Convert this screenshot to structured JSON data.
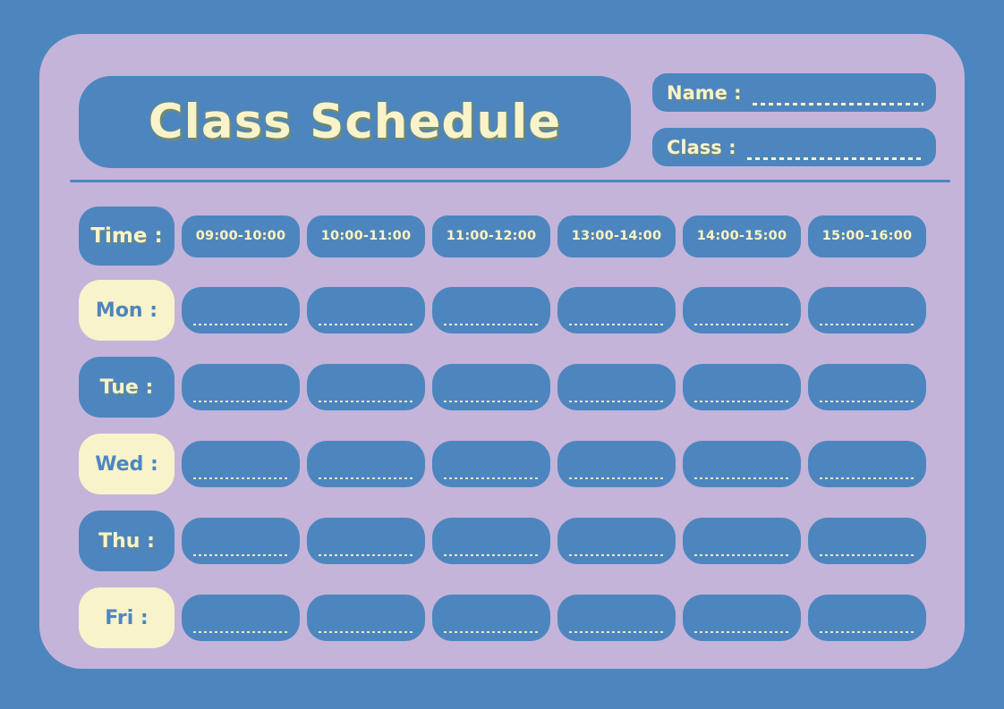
{
  "title": "Class Schedule",
  "fields": {
    "name_label": "Name :",
    "class_label": "Class :"
  },
  "schedule": {
    "time_label": "Time :",
    "time_slots": [
      "09:00-10:00",
      "10:00-11:00",
      "11:00-12:00",
      "13:00-14:00",
      "14:00-15:00",
      "15:00-16:00"
    ],
    "days": [
      "Mon :",
      "Tue :",
      "Wed :",
      "Thu :",
      "Fri :"
    ]
  },
  "colors": {
    "background": "#4d86bf",
    "panel": "#c4b4d9",
    "box_blue": "#4d86bf",
    "box_cream": "#f8f3ca",
    "text_cream": "#f8f3ca",
    "text_blue": "#4d86bf",
    "title_shadow": "#7d8a57"
  }
}
